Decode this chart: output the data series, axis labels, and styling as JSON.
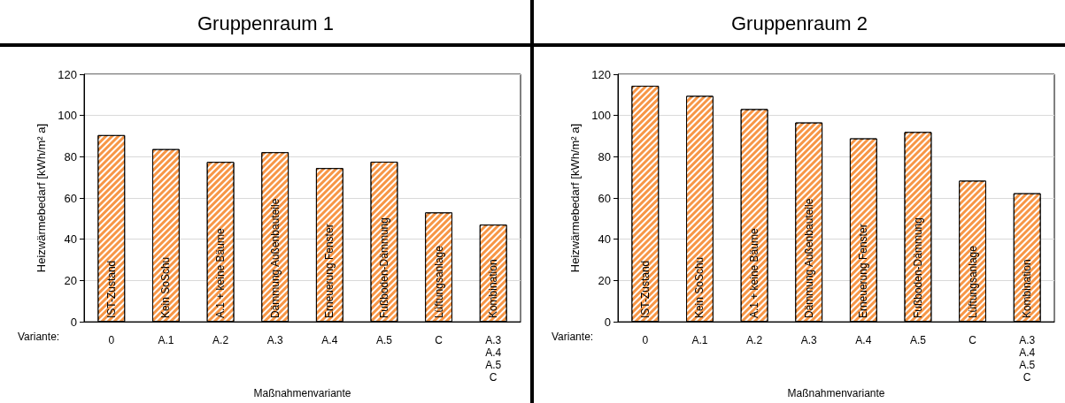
{
  "chart_data": [
    {
      "type": "bar",
      "title": "Gruppenraum 1",
      "xlabel": "Maßnahmenvariante",
      "ylabel": "Heizwärmebedarf [kWh/m² a]",
      "categories": [
        "0",
        "A.1",
        "A.2",
        "A.3",
        "A.4",
        "A.5",
        "C",
        "A.3\nA.4\nA.5\nC"
      ],
      "values": [
        90.5,
        83.7,
        77.5,
        82.2,
        74.5,
        77.6,
        53,
        47.1
      ],
      "color": "#f79646",
      "ylim": [
        0,
        120
      ],
      "yticks": [
        0,
        20,
        40,
        60,
        80,
        100,
        120
      ],
      "grid": "y",
      "annotations": [
        "Variante:",
        {
          "text": "IST-Zustand",
          "x": "0",
          "y": 0
        },
        {
          "text": "Kein SoSchu",
          "x": "A.1",
          "y": 0
        },
        {
          "text": "A.1 + keine Bäume",
          "x": "A.2",
          "y": 0
        },
        {
          "text": "Dämmung Außenbauteile",
          "x": "A.3",
          "y": 0
        },
        {
          "text": "Erneuerung Fenster",
          "x": "A.4",
          "y": 0
        },
        {
          "text": "Fußboden-Dämmung",
          "x": "A.5",
          "y": 0
        },
        {
          "text": "Lüftungsanlage",
          "x": "C",
          "y": 0
        },
        {
          "text": "Kombination",
          "x": "A.3\nA.4\nA.5\nC",
          "y": 0
        }
      ]
    },
    {
      "type": "bar",
      "title": "Gruppenraum 2",
      "xlabel": "Maßnahmenvariante",
      "ylabel": "Heizwärmebedarf [kWh/m² a]",
      "categories": [
        "0",
        "A.1",
        "A.2",
        "A.3",
        "A.4",
        "A.5",
        "C",
        "A.3\nA.4\nA.5\nC"
      ],
      "values": [
        114.4,
        109.5,
        103.1,
        96.6,
        88.9,
        92,
        68.4,
        62.3
      ],
      "color": "#f79646",
      "ylim": [
        0,
        120
      ],
      "yticks": [
        0,
        20,
        40,
        60,
        80,
        100,
        120
      ],
      "grid": "y",
      "annotations": [
        "Variante:",
        {
          "text": "IST-Zustand",
          "x": "0",
          "y": 0
        },
        {
          "text": "Kein SoSchu",
          "x": "A.1",
          "y": 0
        },
        {
          "text": "A.1 + keine Bäume",
          "x": "A.2",
          "y": 0
        },
        {
          "text": "Dämmung Außenbauteile",
          "x": "A.3",
          "y": 0
        },
        {
          "text": "Erneuerung Fenster",
          "x": "A.4",
          "y": 0
        },
        {
          "text": "Fußboden-Dämmung",
          "x": "A.5",
          "y": 0
        },
        {
          "text": "Lüftungsanlage",
          "x": "C",
          "y": 0
        },
        {
          "text": "Kombination",
          "x": "A.3\nA.4\nA.5\nC",
          "y": 0
        }
      ]
    }
  ]
}
